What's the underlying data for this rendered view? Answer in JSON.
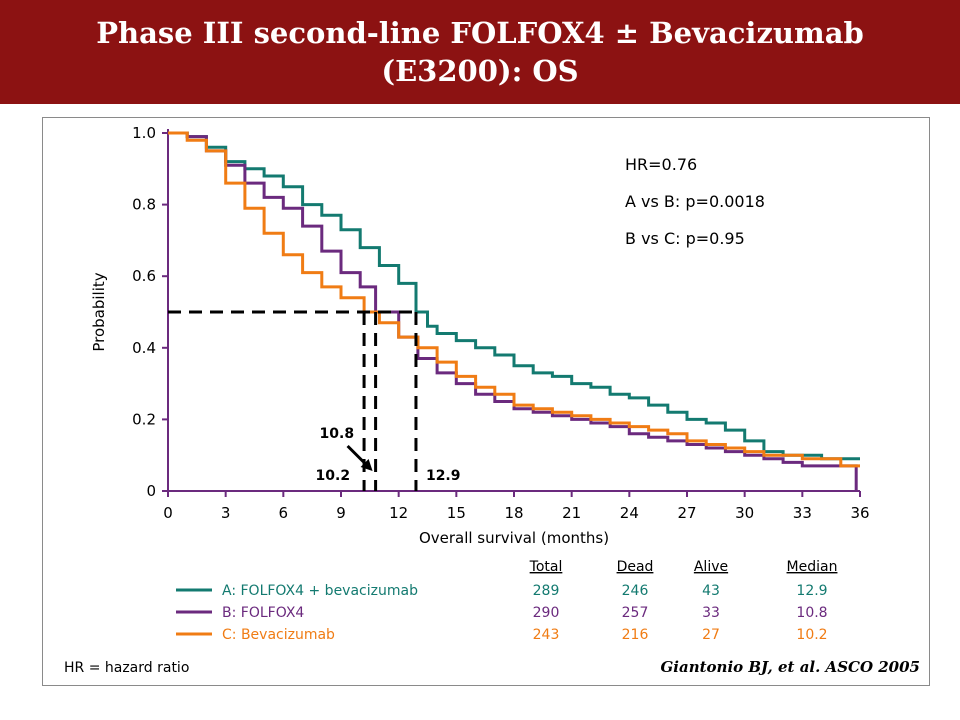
{
  "title_line1": "Phase III second-line FOLFOX4 ± Bevacizumab",
  "title_line2": "(E3200): OS",
  "footnote": "HR = hazard ratio",
  "citation": "Giantonio BJ, et al. ASCO 2005",
  "chart_data": {
    "type": "line",
    "chart_kind": "kaplan-meier survival curve",
    "xlabel": "Overall survival (months)",
    "ylabel": "Probability",
    "xlim": [
      0,
      36
    ],
    "ylim": [
      0,
      1
    ],
    "x_ticks": [
      0,
      3,
      6,
      9,
      12,
      15,
      18,
      21,
      24,
      27,
      30,
      33,
      36
    ],
    "x_tick_labels": [
      "0",
      "3",
      "6",
      "9",
      "12",
      "15",
      "18",
      "21",
      "24",
      "27",
      "30",
      "33",
      "36"
    ],
    "y_ticks": [
      0,
      0.2,
      0.4,
      0.6,
      0.8,
      1.0
    ],
    "y_tick_labels": [
      "0",
      "0.2",
      "0.4",
      "0.6",
      "0.8",
      "1.0"
    ],
    "grid": false,
    "annotations": {
      "stats": [
        "HR=0.76",
        "A vs B: p=0.0018",
        "B vs C: p=0.95"
      ],
      "median_line_y": 0.5,
      "medians": [
        {
          "label": "10.2",
          "x": 10.2
        },
        {
          "label": "10.8",
          "x": 10.8
        },
        {
          "label": "12.9",
          "x": 12.9
        }
      ]
    },
    "table": {
      "headers": [
        "Total",
        "Dead",
        "Alive",
        "Median"
      ],
      "rows": [
        {
          "label": "A: FOLFOX4 + bevacizumab",
          "color": "#137a70",
          "values": [
            "289",
            "246",
            "43",
            "12.9"
          ]
        },
        {
          "label": "B: FOLFOX4",
          "color": "#6b2a7e",
          "values": [
            "290",
            "257",
            "33",
            "10.8"
          ]
        },
        {
          "label": "C: Bevacizumab",
          "color": "#f07c14",
          "values": [
            "243",
            "216",
            "27",
            "10.2"
          ]
        }
      ]
    },
    "series": [
      {
        "name": "A: FOLFOX4 + bevacizumab",
        "color": "#137a70",
        "x": [
          0,
          1,
          2,
          3,
          4,
          5,
          6,
          7,
          8,
          9,
          10,
          11,
          12,
          12.9,
          13.5,
          14,
          15,
          16,
          17,
          18,
          19,
          20,
          21,
          22,
          23,
          24,
          25,
          26,
          27,
          28,
          29,
          30,
          31,
          32,
          33,
          34,
          35,
          36
        ],
        "y": [
          1.0,
          0.99,
          0.96,
          0.92,
          0.9,
          0.88,
          0.85,
          0.8,
          0.77,
          0.73,
          0.68,
          0.63,
          0.58,
          0.5,
          0.46,
          0.44,
          0.42,
          0.4,
          0.38,
          0.35,
          0.33,
          0.32,
          0.3,
          0.29,
          0.27,
          0.26,
          0.24,
          0.22,
          0.2,
          0.19,
          0.17,
          0.14,
          0.11,
          0.1,
          0.1,
          0.09,
          0.09,
          0.09
        ]
      },
      {
        "name": "B: FOLFOX4",
        "color": "#6b2a7e",
        "x": [
          0,
          1,
          2,
          3,
          4,
          5,
          6,
          7,
          8,
          9,
          10,
          10.8,
          12,
          13,
          14,
          15,
          16,
          17,
          18,
          19,
          20,
          21,
          22,
          23,
          24,
          25,
          26,
          27,
          28,
          29,
          30,
          31,
          32,
          33,
          34,
          35,
          35.5,
          35.8
        ],
        "y": [
          1.0,
          0.99,
          0.95,
          0.91,
          0.86,
          0.82,
          0.79,
          0.74,
          0.67,
          0.61,
          0.57,
          0.5,
          0.43,
          0.37,
          0.33,
          0.3,
          0.27,
          0.25,
          0.23,
          0.22,
          0.21,
          0.2,
          0.19,
          0.18,
          0.16,
          0.15,
          0.14,
          0.13,
          0.12,
          0.11,
          0.1,
          0.09,
          0.08,
          0.07,
          0.07,
          0.07,
          0.07,
          0.0
        ]
      },
      {
        "name": "C: Bevacizumab",
        "color": "#f07c14",
        "x": [
          0,
          1,
          2,
          3,
          4,
          5,
          6,
          7,
          8,
          9,
          10.2,
          11,
          12,
          13,
          14,
          15,
          16,
          17,
          18,
          19,
          20,
          21,
          22,
          23,
          24,
          25,
          26,
          27,
          28,
          29,
          30,
          31,
          32,
          33,
          34,
          35,
          36
        ],
        "y": [
          1.0,
          0.98,
          0.95,
          0.86,
          0.79,
          0.72,
          0.66,
          0.61,
          0.57,
          0.54,
          0.5,
          0.47,
          0.43,
          0.4,
          0.36,
          0.32,
          0.29,
          0.27,
          0.24,
          0.23,
          0.22,
          0.21,
          0.2,
          0.19,
          0.18,
          0.17,
          0.16,
          0.14,
          0.13,
          0.12,
          0.11,
          0.1,
          0.1,
          0.09,
          0.09,
          0.07,
          0.07
        ]
      }
    ]
  }
}
